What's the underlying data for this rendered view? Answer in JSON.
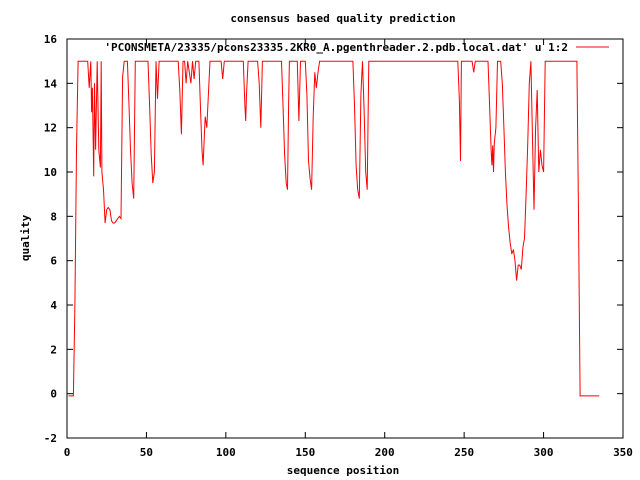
{
  "chart_data": {
    "type": "line",
    "title": "consensus based quality prediction",
    "xlabel": "sequence position",
    "ylabel": "quality",
    "xlim": [
      0,
      350
    ],
    "ylim": [
      -2,
      16
    ],
    "xticks": [
      0,
      50,
      100,
      150,
      200,
      250,
      300,
      350
    ],
    "yticks": [
      -2,
      0,
      2,
      4,
      6,
      8,
      10,
      12,
      14,
      16
    ],
    "legend_position": "top-right",
    "grid": false,
    "series": [
      {
        "name": "'PCONSMETA/23335/pcons23335.2KR0_A.pgenthreader.2.pdb.local.dat' u 1:2",
        "color": "#ff0000",
        "points": [
          [
            1,
            -0.1
          ],
          [
            2,
            -0.1
          ],
          [
            3,
            -0.1
          ],
          [
            4,
            -0.1
          ],
          [
            5,
            4
          ],
          [
            6,
            11
          ],
          [
            7,
            15
          ],
          [
            8,
            15
          ],
          [
            10,
            15
          ],
          [
            13,
            15
          ],
          [
            14,
            13.8
          ],
          [
            15,
            15
          ],
          [
            15.5,
            12.7
          ],
          [
            16,
            13.8
          ],
          [
            16.8,
            9.8
          ],
          [
            17.3,
            14
          ],
          [
            18,
            11
          ],
          [
            19,
            15
          ],
          [
            20,
            11
          ],
          [
            21,
            10.2
          ],
          [
            21.5,
            15
          ],
          [
            22,
            10
          ],
          [
            23,
            9.2
          ],
          [
            24,
            7.7
          ],
          [
            25,
            8.3
          ],
          [
            26,
            8.4
          ],
          [
            27,
            8.3
          ],
          [
            28,
            7.8
          ],
          [
            29,
            7.7
          ],
          [
            30,
            7.7
          ],
          [
            31,
            7.8
          ],
          [
            32,
            7.9
          ],
          [
            33,
            8
          ],
          [
            34,
            7.9
          ],
          [
            35,
            14.3
          ],
          [
            36,
            15
          ],
          [
            37,
            15
          ],
          [
            38,
            15
          ],
          [
            39,
            13
          ],
          [
            40,
            11
          ],
          [
            41,
            9.5
          ],
          [
            42,
            8.8
          ],
          [
            43,
            15
          ],
          [
            44,
            15
          ],
          [
            50,
            15
          ],
          [
            51,
            15
          ],
          [
            52,
            13
          ],
          [
            53,
            10.8
          ],
          [
            54,
            9.5
          ],
          [
            55,
            10
          ],
          [
            56,
            15
          ],
          [
            57,
            13.3
          ],
          [
            58,
            15
          ],
          [
            70,
            15
          ],
          [
            71,
            13.7
          ],
          [
            72,
            11.7
          ],
          [
            73,
            15
          ],
          [
            74,
            15
          ],
          [
            75,
            14
          ],
          [
            76,
            15
          ],
          [
            77,
            14.5
          ],
          [
            78,
            14
          ],
          [
            79,
            15
          ],
          [
            80,
            14.2
          ],
          [
            81,
            15
          ],
          [
            82,
            15
          ],
          [
            83,
            15
          ],
          [
            84,
            13
          ],
          [
            85,
            11
          ],
          [
            85.7,
            10.3
          ],
          [
            86.5,
            11.7
          ],
          [
            87,
            12.5
          ],
          [
            88,
            12
          ],
          [
            89,
            13.5
          ],
          [
            90,
            15
          ],
          [
            96,
            15
          ],
          [
            97,
            15
          ],
          [
            98,
            14.2
          ],
          [
            99,
            15
          ],
          [
            110,
            15
          ],
          [
            111,
            15
          ],
          [
            112,
            13
          ],
          [
            112.5,
            12.3
          ],
          [
            113,
            13.5
          ],
          [
            114,
            15
          ],
          [
            120,
            15
          ],
          [
            121,
            14
          ],
          [
            122,
            12
          ],
          [
            123,
            15
          ],
          [
            135,
            15
          ],
          [
            136,
            13
          ],
          [
            137,
            10.8
          ],
          [
            138,
            9.5
          ],
          [
            138.8,
            9.2
          ],
          [
            139.5,
            13
          ],
          [
            140,
            15
          ],
          [
            145,
            15
          ],
          [
            146,
            12.3
          ],
          [
            147,
            15
          ],
          [
            150,
            15
          ],
          [
            151,
            13.5
          ],
          [
            152,
            10.5
          ],
          [
            153,
            9.7
          ],
          [
            154,
            9.2
          ],
          [
            155,
            12.5
          ],
          [
            156,
            14.5
          ],
          [
            157,
            13.8
          ],
          [
            158,
            14.5
          ],
          [
            159,
            15
          ],
          [
            180,
            15
          ],
          [
            181,
            13
          ],
          [
            182,
            10.3
          ],
          [
            183,
            9.2
          ],
          [
            184,
            8.8
          ],
          [
            185,
            13.5
          ],
          [
            186,
            15
          ],
          [
            187,
            12.8
          ],
          [
            188,
            10
          ],
          [
            189,
            9.2
          ],
          [
            190,
            15
          ],
          [
            246,
            15
          ],
          [
            247,
            13.2
          ],
          [
            247.7,
            10.5
          ],
          [
            248.3,
            15
          ],
          [
            250,
            15
          ],
          [
            255,
            15
          ],
          [
            256,
            14.5
          ],
          [
            257,
            15
          ],
          [
            265,
            15
          ],
          [
            266,
            13
          ],
          [
            267,
            11
          ],
          [
            267.5,
            10.3
          ],
          [
            268,
            11.2
          ],
          [
            268.5,
            10
          ],
          [
            269,
            11.3
          ],
          [
            270,
            12
          ],
          [
            271,
            15
          ],
          [
            272,
            15
          ],
          [
            273,
            15
          ],
          [
            274,
            14
          ],
          [
            275,
            12
          ],
          [
            276,
            10
          ],
          [
            277,
            8.5
          ],
          [
            278,
            7.5
          ],
          [
            279,
            6.8
          ],
          [
            280,
            6.3
          ],
          [
            281,
            6.5
          ],
          [
            282,
            6
          ],
          [
            283,
            5.1
          ],
          [
            284,
            5.8
          ],
          [
            285,
            5.8
          ],
          [
            286,
            5.6
          ],
          [
            287,
            6.6
          ],
          [
            288,
            7
          ],
          [
            289,
            9
          ],
          [
            290,
            11.2
          ],
          [
            291,
            14
          ],
          [
            292,
            15
          ],
          [
            293,
            11.5
          ],
          [
            294,
            8.3
          ],
          [
            295,
            12
          ],
          [
            296,
            13.7
          ],
          [
            297,
            10
          ],
          [
            298,
            11
          ],
          [
            299,
            10.3
          ],
          [
            300,
            10
          ],
          [
            301,
            15
          ],
          [
            320,
            15
          ],
          [
            321,
            15
          ],
          [
            322,
            8
          ],
          [
            323,
            -0.1
          ],
          [
            325,
            -0.1
          ],
          [
            330,
            -0.1
          ],
          [
            335,
            -0.1
          ]
        ]
      }
    ]
  }
}
